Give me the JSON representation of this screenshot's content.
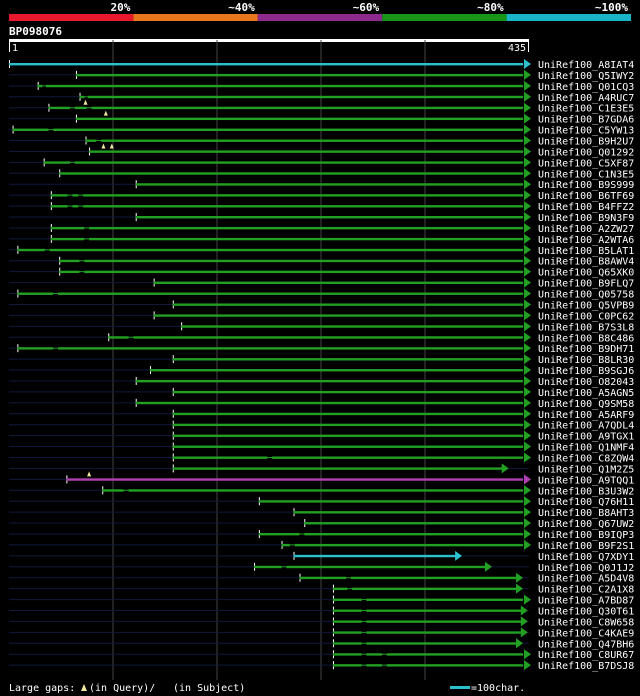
{
  "legend": {
    "bands": [
      {
        "label": "20%",
        "color": "#e8192c"
      },
      {
        "label": "~40%",
        "color": "#e8771e"
      },
      {
        "label": "~60%",
        "color": "#8e2a8e"
      },
      {
        "label": "~80%",
        "color": "#199619"
      },
      {
        "label": "~100%",
        "color": "#19b4c8"
      }
    ]
  },
  "query": {
    "id": "BP098076",
    "start": "1",
    "length": "435"
  },
  "colors": {
    "green": "#22a022",
    "cyan": "#2cc0cc",
    "purple": "#b040b0",
    "thin": "#101840",
    "grid": "#444444",
    "tick": "#ffffff"
  },
  "hits": [
    {
      "name": "UniRef100_A8IAT4",
      "qs": 1,
      "qe": 435,
      "sub": [
        0,
        512
      ],
      "color": "cyan"
    },
    {
      "name": "UniRef100_Q5IWY2",
      "qs": 57,
      "qe": 435,
      "sub": [
        0,
        500
      ]
    },
    {
      "name": "UniRef100_Q01CQ3",
      "qs": 25,
      "qe": 435,
      "sub": [
        0,
        498
      ],
      "segs": [
        [
          25,
          29
        ],
        [
          32,
          435
        ]
      ]
    },
    {
      "name": "UniRef100_A4RUC7",
      "qs": 60,
      "qe": 435,
      "sub": [
        0,
        506
      ],
      "segs": [
        [
          60,
          64
        ],
        [
          67,
          435
        ]
      ]
    },
    {
      "name": "UniRef100_C1E3E5",
      "qs": 34,
      "qe": 435,
      "sub": [
        0,
        500
      ],
      "segs": [
        [
          34,
          52
        ],
        [
          56,
          66
        ],
        [
          70,
          435
        ]
      ],
      "gaps": [
        65
      ]
    },
    {
      "name": "UniRef100_B7GDA6",
      "qs": 57,
      "qe": 435,
      "sub": [
        0,
        508
      ],
      "gaps": [
        82
      ]
    },
    {
      "name": "UniRef100_C5YW13",
      "qs": 4,
      "qe": 435,
      "sub": [
        0,
        520
      ],
      "segs": [
        [
          4,
          34
        ],
        [
          38,
          435
        ]
      ]
    },
    {
      "name": "UniRef100_B9H2U7",
      "qs": 65,
      "qe": 435,
      "sub": [
        0,
        508
      ],
      "segs": [
        [
          65,
          74
        ],
        [
          78,
          435
        ]
      ]
    },
    {
      "name": "UniRef100_Q01292",
      "qs": 68,
      "qe": 435,
      "sub": [
        0,
        520
      ],
      "gaps": [
        80,
        87
      ]
    },
    {
      "name": "UniRef100_C5XF87",
      "qs": 30,
      "qe": 435,
      "sub": [
        0,
        520
      ],
      "segs": [
        [
          30,
          52
        ],
        [
          56,
          435
        ]
      ]
    },
    {
      "name": "UniRef100_C1N3E5",
      "qs": 43,
      "qe": 435,
      "sub": [
        0,
        510
      ]
    },
    {
      "name": "UniRef100_B9S999",
      "qs": 107,
      "qe": 435,
      "sub": [
        0,
        524
      ]
    },
    {
      "name": "UniRef100_B6TF69",
      "qs": 36,
      "qe": 435,
      "sub": [
        0,
        524
      ],
      "segs": [
        [
          36,
          50
        ],
        [
          54,
          59
        ],
        [
          63,
          435
        ]
      ]
    },
    {
      "name": "UniRef100_B4FFZ2",
      "qs": 36,
      "qe": 435,
      "sub": [
        0,
        524
      ],
      "segs": [
        [
          36,
          50
        ],
        [
          54,
          59
        ],
        [
          63,
          435
        ]
      ]
    },
    {
      "name": "UniRef100_B9N3F9",
      "qs": 107,
      "qe": 435,
      "sub": [
        0,
        520
      ]
    },
    {
      "name": "UniRef100_A2ZW27",
      "qs": 36,
      "qe": 435,
      "sub": [
        0,
        524
      ],
      "segs": [
        [
          36,
          64
        ],
        [
          68,
          435
        ]
      ]
    },
    {
      "name": "UniRef100_A2WTA6",
      "qs": 36,
      "qe": 435,
      "sub": [
        0,
        524
      ],
      "segs": [
        [
          36,
          64
        ],
        [
          68,
          435
        ]
      ]
    },
    {
      "name": "UniRef100_B5LAT1",
      "qs": 8,
      "qe": 435,
      "sub": [
        0,
        520
      ],
      "segs": [
        [
          8,
          31
        ],
        [
          35,
          435
        ]
      ]
    },
    {
      "name": "UniRef100_B8AWV4",
      "qs": 43,
      "qe": 435,
      "sub": [
        0,
        524
      ],
      "segs": [
        [
          43,
          60
        ],
        [
          64,
          435
        ]
      ]
    },
    {
      "name": "UniRef100_Q65XK0",
      "qs": 43,
      "qe": 435,
      "sub": [
        0,
        524
      ],
      "segs": [
        [
          43,
          60
        ],
        [
          64,
          435
        ]
      ]
    },
    {
      "name": "UniRef100_B9FLQ7",
      "qs": 122,
      "qe": 435,
      "sub": [
        0,
        524
      ]
    },
    {
      "name": "UniRef100_Q05758",
      "qs": 8,
      "qe": 435,
      "sub": [
        0,
        524
      ],
      "segs": [
        [
          8,
          38
        ],
        [
          42,
          435
        ]
      ]
    },
    {
      "name": "UniRef100_Q5VPB9",
      "qs": 138,
      "qe": 435,
      "sub": [
        0,
        524
      ]
    },
    {
      "name": "UniRef100_C0PC62",
      "qs": 122,
      "qe": 435,
      "sub": [
        0,
        524
      ]
    },
    {
      "name": "UniRef100_B7S3L8",
      "qs": 145,
      "qe": 435,
      "sub": [
        0,
        524
      ]
    },
    {
      "name": "UniRef100_B8C486",
      "qs": 84,
      "qe": 435,
      "sub": [
        0,
        524
      ],
      "segs": [
        [
          84,
          101
        ],
        [
          105,
          435
        ]
      ]
    },
    {
      "name": "UniRef100_B9DH71",
      "qs": 8,
      "qe": 435,
      "sub": [
        0,
        524
      ],
      "segs": [
        [
          8,
          38
        ],
        [
          42,
          435
        ]
      ]
    },
    {
      "name": "UniRef100_B8LR30",
      "qs": 138,
      "qe": 435,
      "sub": [
        0,
        524
      ]
    },
    {
      "name": "UniRef100_B9SGJ6",
      "qs": 119,
      "qe": 435,
      "sub": [
        0,
        524
      ]
    },
    {
      "name": "UniRef100_O82043",
      "qs": 107,
      "qe": 435,
      "sub": [
        0,
        524
      ]
    },
    {
      "name": "UniRef100_A5AGN5",
      "qs": 138,
      "qe": 435,
      "sub": [
        0,
        524
      ]
    },
    {
      "name": "UniRef100_Q9SM58",
      "qs": 107,
      "qe": 435,
      "sub": [
        0,
        524
      ]
    },
    {
      "name": "UniRef100_A5ARF9",
      "qs": 138,
      "qe": 435,
      "sub": [
        0,
        524
      ]
    },
    {
      "name": "UniRef100_A7QDL4",
      "qs": 138,
      "qe": 435,
      "sub": [
        0,
        524
      ]
    },
    {
      "name": "UniRef100_A9TGX1",
      "qs": 138,
      "qe": 435,
      "sub": [
        0,
        524
      ]
    },
    {
      "name": "UniRef100_Q1NMF4",
      "qs": 138,
      "qe": 435,
      "sub": [
        0,
        524
      ]
    },
    {
      "name": "UniRef100_C8ZQW4",
      "qs": 138,
      "qe": 435,
      "sub": [
        0,
        524
      ],
      "segs": [
        [
          138,
          217
        ],
        [
          221,
          435
        ]
      ]
    },
    {
      "name": "UniRef100_Q1M2Z5",
      "qs": 138,
      "qe": 414,
      "sub": [
        0,
        524
      ]
    },
    {
      "name": "UniRef100_A9TQQ1",
      "qs": 49,
      "qe": 435,
      "sub": [
        0,
        524
      ],
      "color": "purple",
      "gaps": [
        68
      ]
    },
    {
      "name": "UniRef100_B3U3W2",
      "qs": 79,
      "qe": 435,
      "sub": [
        0,
        524
      ],
      "segs": [
        [
          79,
          97
        ],
        [
          101,
          435
        ]
      ]
    },
    {
      "name": "UniRef100_Q76H11",
      "qs": 210,
      "qe": 435,
      "sub": [
        0,
        524
      ]
    },
    {
      "name": "UniRef100_B8AHT3",
      "qs": 239,
      "qe": 435,
      "sub": [
        0,
        524
      ]
    },
    {
      "name": "UniRef100_Q67UW2",
      "qs": 248,
      "qe": 435,
      "sub": [
        0,
        524
      ]
    },
    {
      "name": "UniRef100_B9IQP3",
      "qs": 210,
      "qe": 435,
      "sub": [
        0,
        524
      ],
      "segs": [
        [
          210,
          244
        ],
        [
          248,
          435
        ]
      ]
    },
    {
      "name": "UniRef100_B9F2S1",
      "qs": 229,
      "qe": 435,
      "sub": [
        0,
        524
      ],
      "segs": [
        [
          229,
          236
        ],
        [
          240,
          435
        ]
      ]
    },
    {
      "name": "UniRef100_Q7XDY1",
      "qs": 239,
      "qe": 375,
      "sub": [
        0,
        524
      ],
      "color": "cyan"
    },
    {
      "name": "UniRef100_Q0J1J2",
      "qs": 206,
      "qe": 400,
      "sub": [
        0,
        524
      ],
      "segs": [
        [
          206,
          229
        ],
        [
          233,
          400
        ]
      ]
    },
    {
      "name": "UniRef100_A5D4V8",
      "qs": 244,
      "qe": 426,
      "sub": [
        0,
        524
      ],
      "segs": [
        [
          244,
          283
        ],
        [
          287,
          426
        ]
      ]
    },
    {
      "name": "UniRef100_C2A1X8",
      "qs": 272,
      "qe": 426,
      "sub": [
        0,
        524
      ],
      "segs": [
        [
          272,
          284
        ],
        [
          288,
          426
        ]
      ]
    },
    {
      "name": "UniRef100_A7BD87",
      "qs": 272,
      "qe": 440,
      "sub": [
        0,
        524
      ],
      "segs": [
        [
          272,
          296
        ],
        [
          300,
          440
        ]
      ]
    },
    {
      "name": "UniRef100_Q30T61",
      "qs": 272,
      "qe": 430,
      "sub": [
        0,
        524
      ],
      "segs": [
        [
          272,
          296
        ],
        [
          300,
          430
        ]
      ]
    },
    {
      "name": "UniRef100_C8W658",
      "qs": 272,
      "qe": 430,
      "sub": [
        0,
        524
      ],
      "segs": [
        [
          272,
          296
        ],
        [
          300,
          430
        ]
      ]
    },
    {
      "name": "UniRef100_C4KAE9",
      "qs": 272,
      "qe": 430,
      "sub": [
        0,
        524
      ],
      "segs": [
        [
          272,
          296
        ],
        [
          300,
          430
        ]
      ]
    },
    {
      "name": "UniRef100_Q47BH6",
      "qs": 272,
      "qe": 426,
      "sub": [
        0,
        524
      ],
      "segs": [
        [
          272,
          296
        ],
        [
          300,
          426
        ]
      ]
    },
    {
      "name": "UniRef100_C8UR67",
      "qs": 272,
      "qe": 450,
      "sub": [
        0,
        524
      ],
      "segs": [
        [
          272,
          296
        ],
        [
          300,
          313
        ],
        [
          317,
          450
        ]
      ]
    },
    {
      "name": "UniRef100_B7DSJ8",
      "qs": 272,
      "qe": 450,
      "sub": [
        0,
        524
      ],
      "segs": [
        [
          272,
          296
        ],
        [
          300,
          313
        ],
        [
          317,
          450
        ]
      ]
    }
  ],
  "footer": {
    "large_gaps": "Large gaps:",
    "in_query": "(in Query)/",
    "in_subject": "(in Subject)",
    "scale": "=100char."
  }
}
